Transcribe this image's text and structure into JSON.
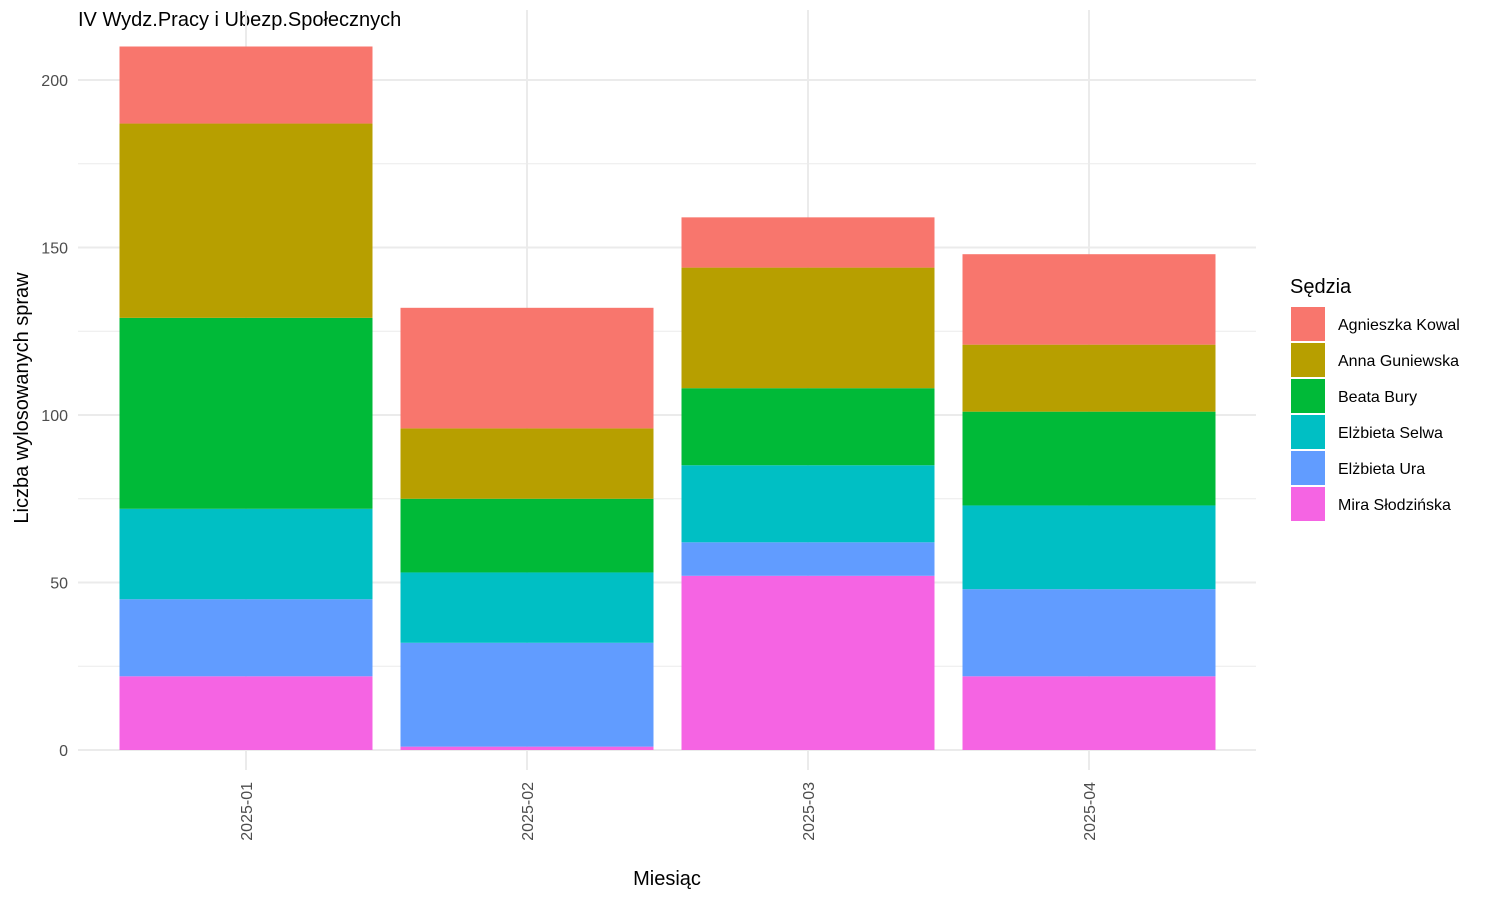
{
  "chart_data": {
    "type": "bar",
    "stacked": true,
    "title": "IV Wydz.Pracy i Ubezp.Społecznych",
    "xlabel": "Miesiąc",
    "ylabel": "Liczba wylosowanych spraw",
    "ylim": [
      0,
      210
    ],
    "y_ticks": [
      0,
      50,
      100,
      150,
      200
    ],
    "grid": true,
    "legend_title": "Sędzia",
    "legend_position": "right",
    "categories": [
      "2025-01",
      "2025-02",
      "2025-03",
      "2025-04"
    ],
    "series": [
      {
        "name": "Mira Słodzińska",
        "color": "#F564E3",
        "values": [
          22,
          1,
          52,
          22
        ]
      },
      {
        "name": "Elżbieta Ura",
        "color": "#619CFF",
        "values": [
          23,
          31,
          10,
          26
        ]
      },
      {
        "name": "Elżbieta Selwa",
        "color": "#00BFC4",
        "values": [
          27,
          21,
          23,
          25
        ]
      },
      {
        "name": "Beata Bury",
        "color": "#00BA38",
        "values": [
          57,
          22,
          23,
          28
        ]
      },
      {
        "name": "Anna Guniewska",
        "color": "#B79F00",
        "values": [
          58,
          21,
          36,
          20
        ]
      },
      {
        "name": "Agnieszka Kowal",
        "color": "#F8766D",
        "values": [
          23,
          36,
          15,
          27
        ]
      }
    ],
    "legend_order": [
      "Agnieszka Kowal",
      "Anna Guniewska",
      "Beata Bury",
      "Elżbieta Selwa",
      "Elżbieta Ura",
      "Mira Słodzińska"
    ]
  }
}
